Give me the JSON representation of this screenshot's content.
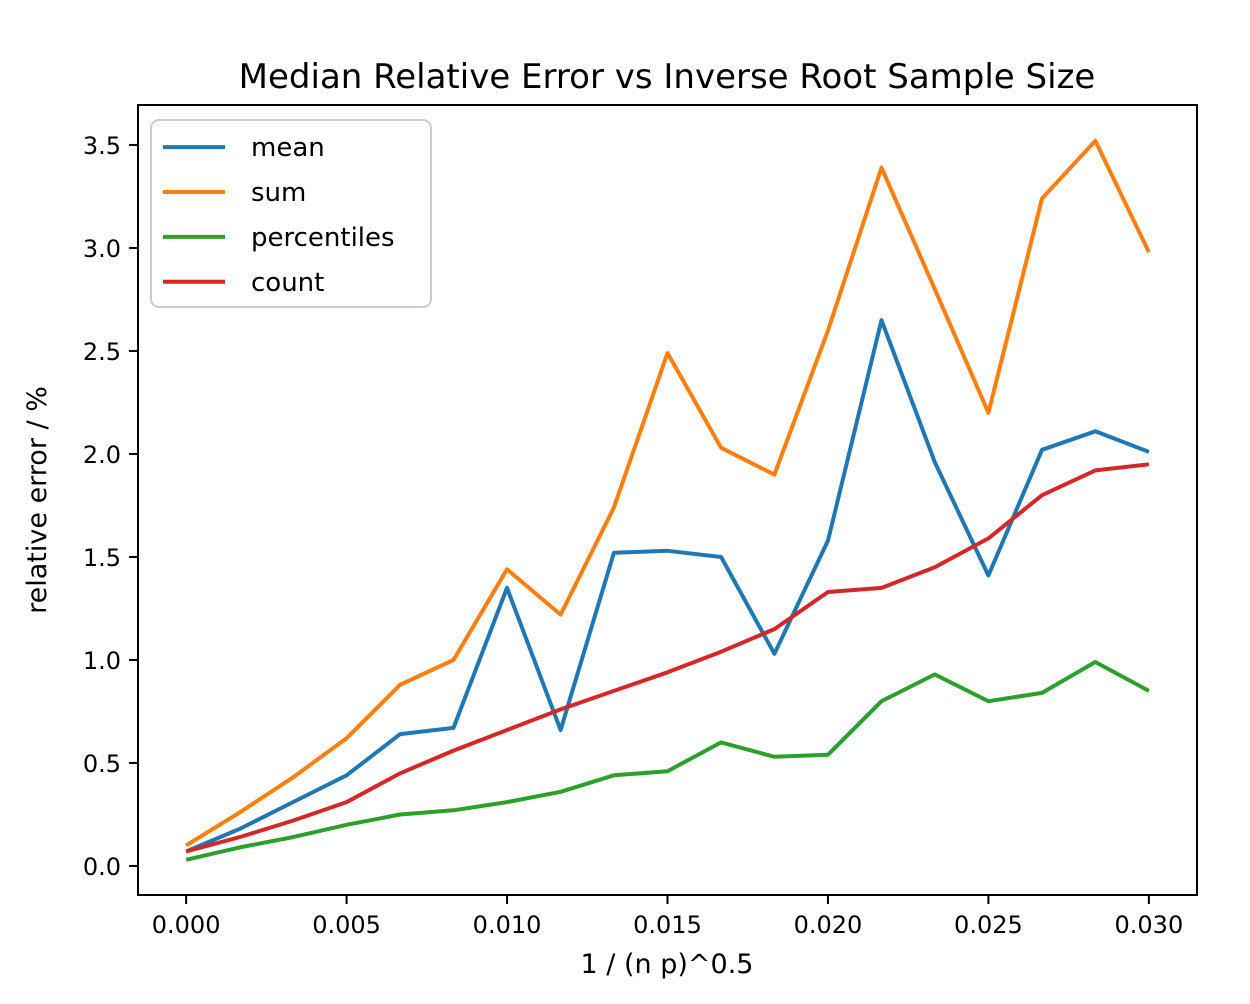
{
  "chart_data": {
    "type": "line",
    "title": "Median Relative Error vs Inverse Root Sample Size",
    "xlabel": "1 / (n p)^0.5",
    "ylabel": "relative error / %",
    "grid": false,
    "legend_position": "upper left",
    "xlim": [
      -0.0015,
      0.0315
    ],
    "ylim": [
      -0.141,
      3.694
    ],
    "x_ticks": [
      0.0,
      0.005,
      0.01,
      0.015,
      0.02,
      0.025,
      0.03
    ],
    "x_tick_labels": [
      "0.000",
      "0.005",
      "0.010",
      "0.015",
      "0.020",
      "0.025",
      "0.030"
    ],
    "y_ticks": [
      0.0,
      0.5,
      1.0,
      1.5,
      2.0,
      2.5,
      3.0,
      3.5
    ],
    "y_tick_labels": [
      "0.0",
      "0.5",
      "1.0",
      "1.5",
      "2.0",
      "2.5",
      "3.0",
      "3.5"
    ],
    "x": [
      0.0,
      0.00167,
      0.00333,
      0.005,
      0.00667,
      0.00833,
      0.01,
      0.01167,
      0.01333,
      0.015,
      0.01667,
      0.01833,
      0.02,
      0.02167,
      0.02333,
      0.025,
      0.02667,
      0.02833,
      0.03
    ],
    "series": [
      {
        "name": "mean",
        "color": "#1f77b4",
        "values": [
          0.07,
          0.18,
          0.31,
          0.44,
          0.64,
          0.67,
          1.35,
          0.66,
          1.52,
          1.53,
          1.5,
          1.03,
          1.58,
          2.65,
          1.96,
          1.41,
          2.02,
          2.11,
          2.01
        ]
      },
      {
        "name": "sum",
        "color": "#ff7f0e",
        "values": [
          0.1,
          0.26,
          0.43,
          0.62,
          0.88,
          1.0,
          1.44,
          1.22,
          1.74,
          2.49,
          2.03,
          1.9,
          2.6,
          3.39,
          2.8,
          2.2,
          3.24,
          3.52,
          2.98
        ]
      },
      {
        "name": "percentiles",
        "color": "#2ca02c",
        "values": [
          0.03,
          0.09,
          0.14,
          0.2,
          0.25,
          0.27,
          0.31,
          0.36,
          0.44,
          0.46,
          0.6,
          0.53,
          0.54,
          0.8,
          0.93,
          0.8,
          0.84,
          0.99,
          0.85
        ]
      },
      {
        "name": "count",
        "color": "#d62728",
        "values": [
          0.07,
          0.14,
          0.22,
          0.31,
          0.45,
          0.56,
          0.66,
          0.76,
          0.85,
          0.94,
          1.04,
          1.15,
          1.33,
          1.35,
          1.45,
          1.59,
          1.8,
          1.92,
          1.95
        ]
      }
    ]
  }
}
